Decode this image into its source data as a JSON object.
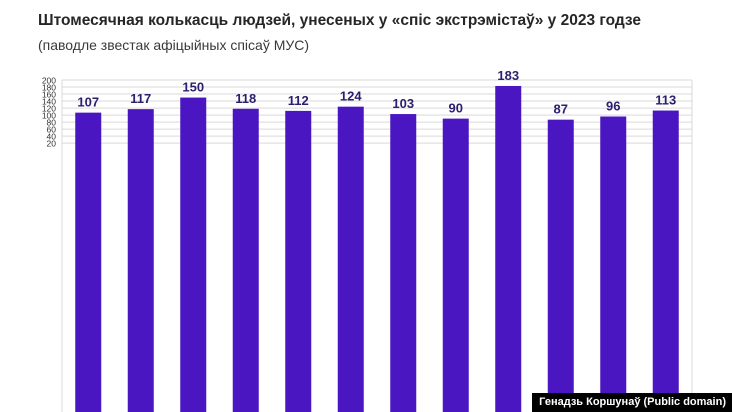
{
  "title": "Штомесячная колькасць людзей, унесеных у «спіс экстрэмістаў» у 2023 годзе",
  "subtitle": "(паводле звестак афіцыйных спісаў МУС)",
  "credit": "Генадзь Коршунаў (Public domain)",
  "colors": {
    "bar": "#4a16c2",
    "grid": "#d9d9d9",
    "label": "#2a1f6e",
    "tick": "#333333"
  },
  "chart_data": {
    "type": "bar",
    "title": "Штомесячная колькасць людзей, унесеных у «спіс экстрэмістаў» у 2023 годзе",
    "subtitle": "(паводле звестак афіцыйных спісаў МУС)",
    "values": [
      107,
      117,
      150,
      118,
      112,
      124,
      103,
      90,
      183,
      87,
      96,
      113
    ],
    "ylim": [
      0,
      200
    ],
    "yticks": [
      20,
      40,
      60,
      80,
      100,
      120,
      140,
      160,
      180,
      200
    ],
    "grid": true,
    "data_labels": true
  }
}
